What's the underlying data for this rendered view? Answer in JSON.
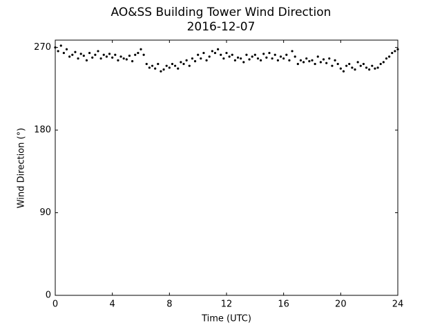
{
  "chart_data": {
    "type": "scatter",
    "title": "AO&SS Building Tower Wind Direction",
    "subtitle": "2016-12-07",
    "x_label": "Time (UTC)",
    "y_label": "Wind Direction (°)",
    "xlim": [
      0,
      24
    ],
    "xticks": [
      0,
      4,
      8,
      12,
      16,
      20,
      24
    ],
    "ylim": [
      0,
      278
    ],
    "yticks": [
      0,
      90,
      180,
      270
    ],
    "color": "#000000",
    "x": [
      0,
      0.2,
      0.4,
      0.6,
      0.8,
      1,
      1.2,
      1.4,
      1.6,
      1.8,
      2,
      2.2,
      2.4,
      2.6,
      2.8,
      3,
      3.2,
      3.4,
      3.6,
      3.8,
      4,
      4.2,
      4.4,
      4.6,
      4.8,
      5,
      5.2,
      5.4,
      5.6,
      5.8,
      6,
      6.2,
      6.4,
      6.6,
      6.8,
      7,
      7.2,
      7.4,
      7.6,
      7.8,
      8,
      8.2,
      8.4,
      8.6,
      8.8,
      9,
      9.2,
      9.4,
      9.6,
      9.8,
      10,
      10.2,
      10.4,
      10.6,
      10.8,
      11,
      11.2,
      11.4,
      11.6,
      11.8,
      12,
      12.2,
      12.4,
      12.6,
      12.8,
      13,
      13.2,
      13.4,
      13.6,
      13.8,
      14,
      14.2,
      14.4,
      14.6,
      14.8,
      15,
      15.2,
      15.4,
      15.6,
      15.8,
      16,
      16.2,
      16.4,
      16.6,
      16.8,
      17,
      17.2,
      17.4,
      17.6,
      17.8,
      18,
      18.2,
      18.4,
      18.6,
      18.8,
      19,
      19.2,
      19.4,
      19.6,
      19.8,
      20,
      20.2,
      20.4,
      20.6,
      20.8,
      21,
      21.2,
      21.4,
      21.6,
      21.8,
      22,
      22.2,
      22.4,
      22.6,
      22.8,
      23,
      23.2,
      23.4,
      23.6,
      23.8,
      24
    ],
    "values": [
      270,
      266,
      272,
      264,
      268,
      260,
      262,
      265,
      258,
      263,
      261,
      256,
      264,
      259,
      262,
      266,
      258,
      262,
      260,
      263,
      259,
      262,
      256,
      260,
      258,
      257,
      261,
      255,
      262,
      264,
      268,
      262,
      252,
      248,
      250,
      247,
      252,
      244,
      246,
      250,
      248,
      252,
      250,
      247,
      254,
      252,
      256,
      250,
      258,
      255,
      262,
      258,
      264,
      256,
      260,
      266,
      264,
      268,
      262,
      258,
      264,
      260,
      262,
      256,
      259,
      258,
      254,
      262,
      257,
      260,
      262,
      258,
      256,
      263,
      259,
      264,
      258,
      262,
      256,
      260,
      258,
      262,
      256,
      266,
      260,
      252,
      256,
      254,
      258,
      255,
      256,
      252,
      260,
      254,
      257,
      253,
      258,
      250,
      256,
      252,
      247,
      244,
      250,
      252,
      248,
      246,
      254,
      250,
      252,
      248,
      246,
      250,
      247,
      248,
      252,
      254,
      258,
      260,
      264,
      266,
      268
    ]
  }
}
